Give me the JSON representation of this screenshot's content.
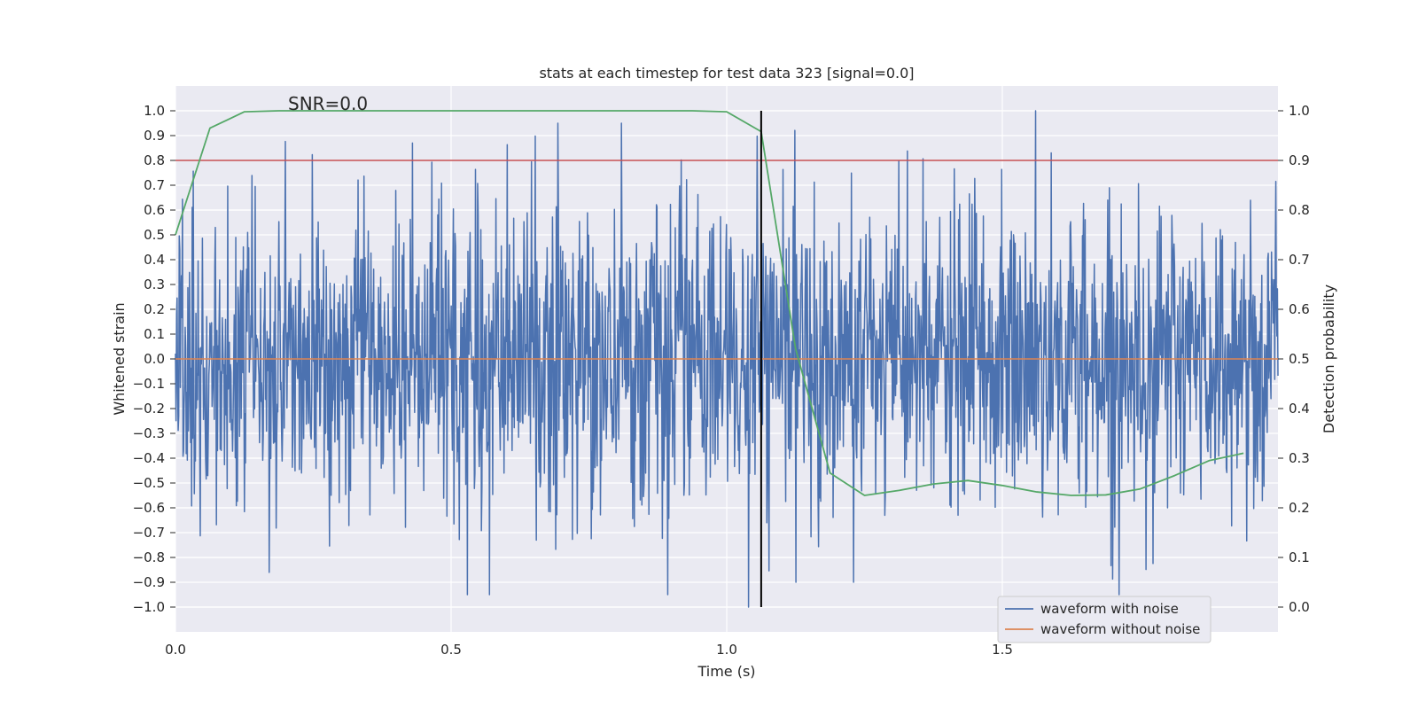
{
  "chart_data": {
    "type": "line",
    "title": "stats at each timestep for test data 323 [signal=0.0]",
    "xlabel": "Time (s)",
    "ylabel": "Whitened strain",
    "y2label": "Detection probability",
    "xlim": [
      0.0,
      2.0
    ],
    "ylim": [
      -1.1,
      1.1
    ],
    "y2lim": [
      -0.05,
      1.05
    ],
    "x_ticks": [
      0.0,
      0.5,
      1.0,
      1.5
    ],
    "x_tick_labels": [
      "0.0",
      "0.5",
      "1.0",
      "1.5"
    ],
    "y_ticks": [
      1.0,
      0.9,
      0.8,
      0.7,
      0.6,
      0.5,
      0.4,
      0.3,
      0.2,
      0.1,
      0.0,
      -0.1,
      -0.2,
      -0.3,
      -0.4,
      -0.5,
      -0.6,
      -0.7,
      -0.8,
      -0.9,
      -1.0
    ],
    "y_tick_labels": [
      "1.0",
      "0.9",
      "0.8",
      "0.7",
      "0.6",
      "0.5",
      "0.4",
      "0.3",
      "0.2",
      "0.1",
      "0.0",
      "−0.1",
      "−0.2",
      "−0.3",
      "−0.4",
      "−0.5",
      "−0.6",
      "−0.7",
      "−0.8",
      "−0.9",
      "−1.0"
    ],
    "y2_ticks": [
      1.0,
      0.9,
      0.8,
      0.7,
      0.6,
      0.5,
      0.4,
      0.3,
      0.2,
      0.1,
      0.0
    ],
    "y2_tick_labels": [
      "1.0",
      "0.9",
      "0.8",
      "0.7",
      "0.6",
      "0.5",
      "0.4",
      "0.3",
      "0.2",
      "0.1",
      "0.0"
    ],
    "grid": true,
    "legend_position": "bottom-right",
    "annotation": "SNR=0.0",
    "series": [
      {
        "name": "waveform with noise",
        "color": "#4c72b0",
        "axis": "left",
        "kind": "noise",
        "x_start": 0.0,
        "x_end": 2.0,
        "n_points": 2048,
        "amplitude_range": [
          -1.0,
          1.0
        ],
        "typical_std": 0.3,
        "notable_values": [
          {
            "x": 1.56,
            "y": 1.0
          },
          {
            "x": 1.04,
            "y": -1.0
          },
          {
            "x": 0.43,
            "y": 0.87
          },
          {
            "x": 0.53,
            "y": -0.95
          },
          {
            "x": 0.57,
            "y": -0.95
          },
          {
            "x": 1.23,
            "y": -0.9
          }
        ]
      },
      {
        "name": "waveform without noise",
        "color": "#dd8452",
        "axis": "left",
        "x": [
          0.0,
          2.0
        ],
        "y": [
          0.0,
          0.0
        ]
      },
      {
        "name": "Detection probability",
        "color": "#55a868",
        "axis": "right",
        "x": [
          0.0,
          0.0625,
          0.125,
          0.1875,
          0.25,
          0.3125,
          0.375,
          0.4375,
          0.5,
          0.5625,
          0.625,
          0.6875,
          0.75,
          0.8125,
          0.875,
          0.9375,
          1.0,
          1.0625,
          1.125,
          1.1875,
          1.25,
          1.3125,
          1.375,
          1.4375,
          1.5,
          1.5625,
          1.625,
          1.6875,
          1.75,
          1.8125,
          1.875,
          1.9375
        ],
        "y": [
          0.75,
          0.965,
          0.998,
          1.0,
          1.0,
          1.0,
          1.0,
          1.0,
          1.0,
          1.0,
          1.0,
          1.0,
          1.0,
          1.0,
          1.0,
          1.0,
          0.998,
          0.958,
          0.52,
          0.27,
          0.225,
          0.235,
          0.248,
          0.255,
          0.245,
          0.232,
          0.225,
          0.226,
          0.238,
          0.265,
          0.295,
          0.31
        ]
      }
    ],
    "threshold_line": {
      "axis": "right",
      "y": 0.9,
      "color": "#c44e52"
    },
    "vertical_line": {
      "x": 1.0625,
      "y_top": 1.0,
      "y_bottom": -1.0,
      "color": "#000000"
    }
  }
}
